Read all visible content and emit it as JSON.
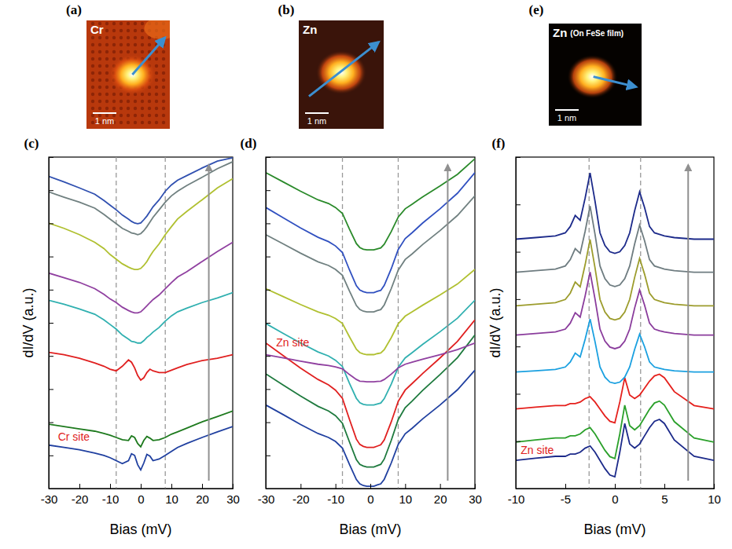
{
  "images": [
    {
      "label": "(a)",
      "title": "Cr",
      "scale_bar": "1 nm"
    },
    {
      "label": "(b)",
      "title": "Zn",
      "scale_bar": "1 nm"
    },
    {
      "label": "(e)",
      "title": "Zn",
      "subtitle": "(On FeSe film)",
      "scale_bar": "1 nm"
    }
  ],
  "chart_data": [
    {
      "type": "line",
      "title": "(c)",
      "xlabel": "Bias (mV)",
      "ylabel": "dI/dV (a.u.)",
      "x": [
        -30,
        -25,
        -20,
        -15,
        -12,
        -10,
        -8,
        -6,
        -4,
        -3,
        -2,
        -1,
        0,
        1,
        2,
        3,
        4,
        6,
        8,
        10,
        12,
        15,
        20,
        25,
        30
      ],
      "xlim": [
        -30,
        30
      ],
      "xticks": [
        -30,
        -20,
        -10,
        0,
        10,
        20,
        30
      ],
      "ylim": [
        0,
        10
      ],
      "yticks": [
        0,
        1,
        2,
        3,
        4,
        5,
        6,
        7,
        8,
        9,
        10
      ],
      "tick_labels": "x",
      "vlines": [
        -8,
        8
      ],
      "annotations": [
        {
          "text": "Cr site",
          "x": -27,
          "y": 1.45,
          "color": "#e02020"
        }
      ],
      "series": [
        {
          "color": "#2040a0",
          "values": [
            1.31,
            1.24,
            1.17,
            1.07,
            1.0,
            0.93,
            0.84,
            0.75,
            0.84,
            1.05,
            1.0,
            0.72,
            0.56,
            0.77,
            1.03,
            0.98,
            0.84,
            0.89,
            1.0,
            1.12,
            1.24,
            1.36,
            1.54,
            1.71,
            1.87
          ]
        },
        {
          "color": "#1e7a1e",
          "values": [
            1.94,
            1.87,
            1.8,
            1.73,
            1.66,
            1.61,
            1.54,
            1.47,
            1.45,
            1.59,
            1.54,
            1.36,
            1.26,
            1.45,
            1.57,
            1.52,
            1.45,
            1.47,
            1.54,
            1.64,
            1.71,
            1.82,
            2.01,
            2.17,
            2.34
          ]
        },
        {
          "color": "#e02020",
          "values": [
            4.11,
            4.04,
            3.93,
            3.79,
            3.69,
            3.6,
            3.55,
            3.69,
            3.88,
            3.81,
            3.64,
            3.41,
            3.27,
            3.34,
            3.5,
            3.6,
            3.55,
            3.5,
            3.5,
            3.57,
            3.64,
            3.74,
            3.86,
            3.93,
            4.04
          ]
        },
        {
          "color": "#30b0b0",
          "values": [
            5.68,
            5.56,
            5.42,
            5.26,
            5.09,
            4.95,
            4.81,
            4.63,
            4.51,
            4.44,
            4.42,
            4.39,
            4.39,
            4.46,
            4.56,
            4.63,
            4.72,
            4.86,
            5.05,
            5.21,
            5.33,
            5.44,
            5.61,
            5.75,
            5.91
          ]
        },
        {
          "color": "#9040a0",
          "values": [
            6.5,
            6.36,
            6.22,
            6.03,
            5.86,
            5.72,
            5.61,
            5.47,
            5.37,
            5.33,
            5.3,
            5.3,
            5.33,
            5.42,
            5.51,
            5.61,
            5.7,
            5.84,
            6.03,
            6.21,
            6.38,
            6.54,
            6.85,
            7.15,
            7.43
          ]
        },
        {
          "color": "#b0c030",
          "values": [
            8.01,
            7.85,
            7.66,
            7.43,
            7.24,
            7.06,
            6.92,
            6.78,
            6.68,
            6.64,
            6.61,
            6.61,
            6.64,
            6.73,
            6.85,
            7.01,
            7.15,
            7.38,
            7.66,
            7.9,
            8.13,
            8.36,
            8.71,
            9.07,
            9.35
          ]
        },
        {
          "color": "#708080",
          "values": [
            8.95,
            8.79,
            8.64,
            8.46,
            8.27,
            8.13,
            7.99,
            7.85,
            7.76,
            7.71,
            7.69,
            7.66,
            7.69,
            7.78,
            7.9,
            8.04,
            8.18,
            8.41,
            8.64,
            8.83,
            8.97,
            9.14,
            9.39,
            9.65,
            9.86
          ]
        },
        {
          "color": "#3050b0",
          "values": [
            9.42,
            9.25,
            9.07,
            8.88,
            8.69,
            8.55,
            8.41,
            8.25,
            8.13,
            8.06,
            8.01,
            7.99,
            8.01,
            8.11,
            8.22,
            8.36,
            8.5,
            8.71,
            8.97,
            9.16,
            9.3,
            9.44,
            9.67,
            9.88,
            9.98
          ]
        }
      ]
    },
    {
      "type": "line",
      "title": "(d)",
      "xlabel": "Bias (mV)",
      "x": [
        -30,
        -25,
        -20,
        -15,
        -12,
        -10,
        -8,
        -6,
        -4,
        -3,
        -2,
        -1,
        0,
        1,
        2,
        3,
        4,
        6,
        8,
        10,
        12,
        15,
        20,
        25,
        30
      ],
      "xlim": [
        -30,
        30
      ],
      "xticks": [
        -30,
        -20,
        -10,
        0,
        10,
        20,
        30
      ],
      "ylim": [
        0,
        10
      ],
      "yticks": [
        0,
        1,
        2,
        3,
        4,
        5,
        6,
        7,
        8,
        9,
        10
      ],
      "tick_labels": "x",
      "vlines": [
        -8,
        8
      ],
      "annotations": [
        {
          "text": "Zn site",
          "x": -27,
          "y": 4.3,
          "color": "#e02020"
        }
      ],
      "series": [
        {
          "color": "#2040a0",
          "values": [
            2.52,
            2.23,
            1.93,
            1.66,
            1.54,
            1.42,
            1.22,
            0.73,
            0.27,
            0.14,
            0.09,
            0.07,
            0.07,
            0.07,
            0.11,
            0.14,
            0.28,
            0.77,
            1.33,
            1.65,
            1.82,
            2.1,
            2.52,
            2.98,
            3.57
          ]
        },
        {
          "color": "#1e7a3e",
          "values": [
            3.46,
            3.12,
            2.79,
            2.48,
            2.34,
            2.2,
            1.97,
            1.41,
            0.87,
            0.73,
            0.68,
            0.65,
            0.65,
            0.65,
            0.69,
            0.73,
            0.89,
            1.45,
            2.08,
            2.44,
            2.64,
            2.96,
            3.44,
            3.95,
            4.63
          ]
        },
        {
          "color": "#e02020",
          "values": [
            4.39,
            4.01,
            3.63,
            3.29,
            3.13,
            2.97,
            2.72,
            2.09,
            1.49,
            1.33,
            1.27,
            1.24,
            1.24,
            1.24,
            1.28,
            1.32,
            1.47,
            2.01,
            2.63,
            2.97,
            3.17,
            3.47,
            3.94,
            4.44,
            5.09
          ]
        },
        {
          "color": "#30b0b0",
          "values": [
            4.98,
            4.68,
            4.39,
            4.12,
            4.0,
            3.87,
            3.68,
            3.18,
            2.72,
            2.59,
            2.54,
            2.52,
            2.52,
            2.52,
            2.55,
            2.58,
            2.71,
            3.15,
            3.66,
            3.94,
            4.1,
            4.35,
            4.73,
            5.14,
            5.68
          ]
        },
        {
          "color": "#9040a0",
          "values": [
            4.04,
            3.94,
            3.84,
            3.75,
            3.71,
            3.67,
            3.61,
            3.44,
            3.29,
            3.24,
            3.23,
            3.22,
            3.22,
            3.22,
            3.23,
            3.24,
            3.29,
            3.45,
            3.64,
            3.75,
            3.81,
            3.9,
            4.04,
            4.19,
            4.39
          ]
        },
        {
          "color": "#b0c030",
          "values": [
            6.03,
            5.79,
            5.55,
            5.33,
            5.23,
            5.13,
            4.98,
            4.58,
            4.2,
            4.1,
            4.06,
            4.04,
            4.04,
            4.04,
            4.07,
            4.09,
            4.19,
            4.55,
            4.97,
            5.2,
            5.33,
            5.53,
            5.84,
            6.17,
            6.61
          ]
        },
        {
          "color": "#708080",
          "values": [
            7.66,
            7.38,
            7.1,
            6.84,
            6.73,
            6.61,
            6.43,
            5.96,
            5.52,
            5.4,
            5.35,
            5.33,
            5.33,
            5.33,
            5.37,
            5.4,
            5.54,
            6.03,
            6.59,
            6.91,
            7.08,
            7.36,
            7.78,
            8.24,
            8.83
          ]
        },
        {
          "color": "#3050c0",
          "values": [
            8.48,
            8.17,
            7.86,
            7.58,
            7.45,
            7.32,
            7.12,
            6.6,
            6.12,
            5.99,
            5.94,
            5.91,
            5.91,
            5.91,
            5.95,
            5.98,
            6.13,
            6.63,
            7.21,
            7.54,
            7.72,
            8.01,
            8.44,
            8.91,
            9.53
          ]
        },
        {
          "color": "#2a8a2a",
          "values": [
            9.53,
            9.25,
            8.97,
            8.71,
            8.6,
            8.48,
            8.3,
            7.83,
            7.39,
            7.27,
            7.22,
            7.2,
            7.2,
            7.2,
            7.23,
            7.26,
            7.37,
            7.75,
            8.19,
            8.44,
            8.58,
            8.8,
            9.13,
            9.48,
            9.95
          ]
        }
      ]
    },
    {
      "type": "line",
      "title": "(f)",
      "xlabel": "Bias (mV)",
      "ylabel": "dI/dV (a.u.)",
      "x": [
        -10,
        -8,
        -6,
        -5,
        -4.5,
        -4,
        -3.5,
        -3,
        -2.5,
        -2,
        -1.5,
        -1,
        -0.5,
        0,
        0.5,
        1,
        1.5,
        2,
        2.5,
        3,
        3.5,
        4,
        4.5,
        5,
        6,
        8,
        10
      ],
      "xlim": [
        -10,
        10
      ],
      "xticks": [
        -10,
        -5,
        0,
        5,
        10
      ],
      "ylim": [
        0,
        10.5
      ],
      "yticks": [
        0,
        1.5,
        3,
        4.5,
        6,
        7.5,
        9,
        10.5
      ],
      "tick_labels": "x",
      "vlines": [
        -2.6,
        2.6
      ],
      "annotations": [
        {
          "text": "Zn site",
          "x": -9.5,
          "y": 1.1,
          "color": "#e02020"
        }
      ],
      "series": [
        {
          "color": "#1c2a8a",
          "values": [
            0.89,
            0.96,
            1.02,
            1.02,
            1.09,
            1.09,
            1.15,
            1.28,
            1.35,
            1.15,
            0.89,
            0.63,
            0.43,
            0.37,
            1.15,
            2.06,
            1.41,
            1.28,
            1.41,
            1.67,
            1.93,
            2.13,
            2.19,
            2.06,
            1.54,
            1.02,
            0.89
          ]
        },
        {
          "color": "#2aa02a",
          "values": [
            1.47,
            1.54,
            1.6,
            1.6,
            1.67,
            1.67,
            1.73,
            1.86,
            1.93,
            1.73,
            1.47,
            1.21,
            1.01,
            0.95,
            1.73,
            2.64,
            1.99,
            1.86,
            1.99,
            2.25,
            2.51,
            2.71,
            2.77,
            2.64,
            2.12,
            1.6,
            1.47
          ]
        },
        {
          "color": "#e5201c",
          "values": [
            2.52,
            2.58,
            2.63,
            2.63,
            2.69,
            2.69,
            2.74,
            2.85,
            2.91,
            2.74,
            2.52,
            2.3,
            2.13,
            2.08,
            2.74,
            3.51,
            2.96,
            2.85,
            2.96,
            3.18,
            3.4,
            3.57,
            3.62,
            3.51,
            3.07,
            2.63,
            2.52
          ]
        },
        {
          "color": "#1aa0e0",
          "values": [
            3.69,
            3.73,
            3.77,
            3.85,
            4.01,
            4.29,
            4.17,
            4.73,
            5.37,
            4.65,
            3.85,
            3.53,
            3.37,
            3.33,
            3.37,
            3.53,
            3.85,
            4.41,
            4.89,
            4.49,
            4.01,
            3.85,
            3.81,
            3.77,
            3.73,
            3.69,
            3.69
          ]
        },
        {
          "color": "#8a3c9c",
          "values": [
            4.86,
            4.91,
            4.96,
            5.05,
            5.24,
            5.57,
            5.43,
            6.1,
            6.86,
            6.0,
            5.05,
            4.67,
            4.48,
            4.43,
            4.48,
            4.67,
            5.05,
            5.72,
            6.29,
            5.81,
            5.24,
            5.05,
            5.0,
            4.96,
            4.91,
            4.86,
            4.86
          ]
        },
        {
          "color": "#9c9c2c",
          "values": [
            5.79,
            5.84,
            5.89,
            5.99,
            6.19,
            6.54,
            6.39,
            7.09,
            7.89,
            6.99,
            5.99,
            5.59,
            5.39,
            5.34,
            5.39,
            5.59,
            5.99,
            6.69,
            7.29,
            6.79,
            6.19,
            5.99,
            5.94,
            5.89,
            5.84,
            5.79,
            5.79
          ]
        },
        {
          "color": "#6e7c80",
          "values": [
            6.85,
            6.9,
            6.95,
            7.05,
            7.25,
            7.6,
            7.45,
            8.15,
            8.95,
            8.05,
            7.05,
            6.65,
            6.45,
            6.4,
            6.45,
            6.65,
            7.05,
            7.75,
            8.35,
            7.85,
            7.25,
            7.05,
            7.0,
            6.95,
            6.9,
            6.85,
            6.85
          ]
        },
        {
          "color": "#1c2a8a",
          "values": [
            7.9,
            7.95,
            8.0,
            8.1,
            8.3,
            8.65,
            8.5,
            9.2,
            10.0,
            9.1,
            8.1,
            7.7,
            7.5,
            7.45,
            7.5,
            7.7,
            8.1,
            8.8,
            9.4,
            8.9,
            8.3,
            8.1,
            8.05,
            8.0,
            7.95,
            7.9,
            7.9
          ]
        }
      ]
    }
  ]
}
